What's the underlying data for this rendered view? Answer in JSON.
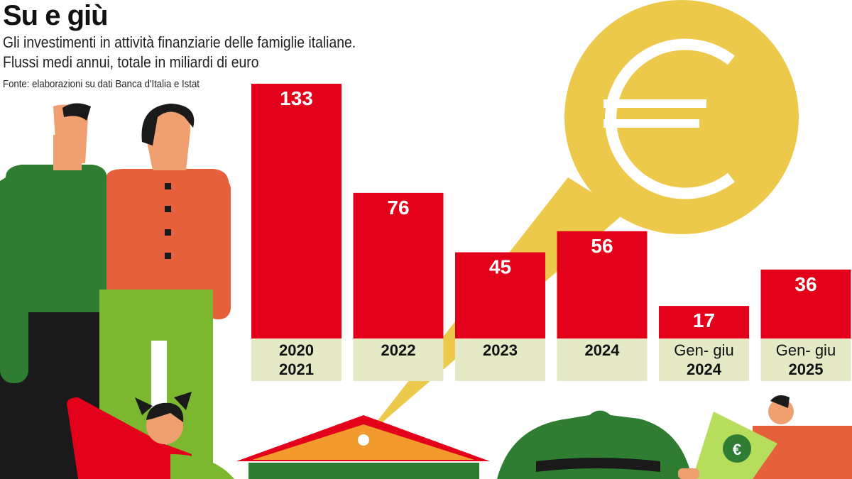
{
  "chart_data": {
    "type": "bar",
    "title": "Su e giù",
    "subtitle_lines": [
      "Gli investimenti in attività finanziarie delle famiglie italiane.",
      "Flussi medi annui, totale in miliardi di euro"
    ],
    "source": "Fonte: elaborazioni su dati Banca d'Italia e Istat",
    "categories": [
      {
        "line1": "2020",
        "line2": "2021",
        "line1_bold": true,
        "line2_bold": true
      },
      {
        "line1": "2022",
        "line2": "",
        "line1_bold": true,
        "line2_bold": true
      },
      {
        "line1": "2023",
        "line2": "",
        "line1_bold": true,
        "line2_bold": true
      },
      {
        "line1": "2024",
        "line2": "",
        "line1_bold": true,
        "line2_bold": true
      },
      {
        "line1": "Gen- giu",
        "line2": "2024",
        "line1_bold": false,
        "line2_bold": true
      },
      {
        "line1": "Gen- giu",
        "line2": "2025",
        "line1_bold": false,
        "line2_bold": true
      }
    ],
    "values": [
      133,
      76,
      45,
      56,
      17,
      36
    ],
    "ylim": [
      0,
      133
    ],
    "grid": false,
    "legend": "none",
    "colors": {
      "bar": "#e2001a",
      "label_band": "#e6e9c6",
      "coin": "#ecc94b",
      "coin_symbol": "#ffffff",
      "green_dark": "#2e7d32",
      "green_light": "#7cb82f",
      "orange": "#e5603b",
      "skin": "#f0a070",
      "hair": "#1a1a1a"
    },
    "icons": [
      "euro-coin-icon",
      "bank-roof-icon",
      "piggy-bank-icon",
      "banknote-icon",
      "family-illustration"
    ]
  }
}
